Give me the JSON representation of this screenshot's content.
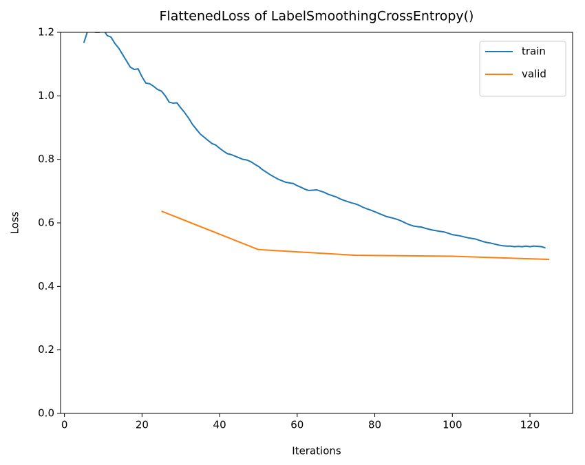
{
  "chart_data": {
    "type": "line",
    "title": "FlattenedLoss of LabelSmoothingCrossEntropy()",
    "x_label": "Iterations",
    "y_label": "Loss",
    "xlim": [
      -1,
      131
    ],
    "ylim": [
      0,
      1.2
    ],
    "xticks": [
      0,
      20,
      40,
      60,
      80,
      100,
      120
    ],
    "yticks": [
      {
        "value": 0,
        "label": "0.0"
      },
      0.2,
      0.4,
      0.6,
      0.8,
      {
        "value": 1,
        "label": "1.0"
      },
      1.2
    ],
    "legend": "upper right",
    "series": [
      {
        "name": "train",
        "color": "#1f77b4",
        "x": [
          5,
          6,
          7,
          8,
          9,
          10,
          11,
          12,
          13,
          14,
          15,
          16,
          17,
          18,
          19,
          20,
          21,
          22,
          23,
          24,
          25,
          26,
          27,
          28,
          29,
          30,
          31,
          32,
          33,
          34,
          35,
          36,
          37,
          38,
          39,
          40,
          41,
          42,
          43,
          44,
          45,
          46,
          47,
          48,
          49,
          50,
          51,
          52,
          53,
          54,
          55,
          56,
          57,
          58,
          59,
          60,
          61,
          62,
          63,
          64,
          65,
          66,
          67,
          68,
          69,
          70,
          71,
          72,
          73,
          74,
          75,
          76,
          77,
          78,
          79,
          80,
          81,
          82,
          83,
          84,
          85,
          86,
          87,
          88,
          89,
          90,
          91,
          92,
          93,
          94,
          95,
          96,
          97,
          98,
          99,
          100,
          101,
          102,
          103,
          104,
          105,
          106,
          107,
          108,
          109,
          110,
          111,
          112,
          113,
          114,
          115,
          116,
          117,
          118,
          119,
          120,
          121,
          122,
          123,
          124
        ],
        "values": [
          1.167,
          1.205,
          1.205,
          1.2,
          1.2,
          1.21,
          1.19,
          1.185,
          1.165,
          1.15,
          1.13,
          1.11,
          1.09,
          1.083,
          1.085,
          1.06,
          1.04,
          1.038,
          1.03,
          1.02,
          1.015,
          1.0,
          0.98,
          0.977,
          0.978,
          0.962,
          0.947,
          0.93,
          0.91,
          0.895,
          0.88,
          0.87,
          0.86,
          0.85,
          0.845,
          0.835,
          0.826,
          0.818,
          0.815,
          0.81,
          0.805,
          0.8,
          0.798,
          0.793,
          0.785,
          0.778,
          0.768,
          0.76,
          0.752,
          0.745,
          0.738,
          0.733,
          0.728,
          0.726,
          0.724,
          0.717,
          0.712,
          0.706,
          0.702,
          0.703,
          0.704,
          0.7,
          0.696,
          0.69,
          0.686,
          0.682,
          0.676,
          0.671,
          0.667,
          0.663,
          0.66,
          0.655,
          0.649,
          0.644,
          0.64,
          0.635,
          0.63,
          0.625,
          0.62,
          0.617,
          0.614,
          0.61,
          0.605,
          0.599,
          0.594,
          0.59,
          0.588,
          0.587,
          0.583,
          0.58,
          0.577,
          0.575,
          0.573,
          0.571,
          0.567,
          0.563,
          0.561,
          0.559,
          0.556,
          0.553,
          0.551,
          0.549,
          0.545,
          0.541,
          0.538,
          0.536,
          0.533,
          0.53,
          0.528,
          0.527,
          0.527,
          0.525,
          0.526,
          0.525,
          0.527,
          0.525,
          0.527,
          0.526,
          0.525,
          0.521
        ]
      },
      {
        "name": "valid",
        "color": "#ff7f0e",
        "x": [
          25,
          50,
          75,
          100,
          125
        ],
        "values": [
          0.637,
          0.516,
          0.498,
          0.495,
          0.485
        ]
      }
    ]
  }
}
